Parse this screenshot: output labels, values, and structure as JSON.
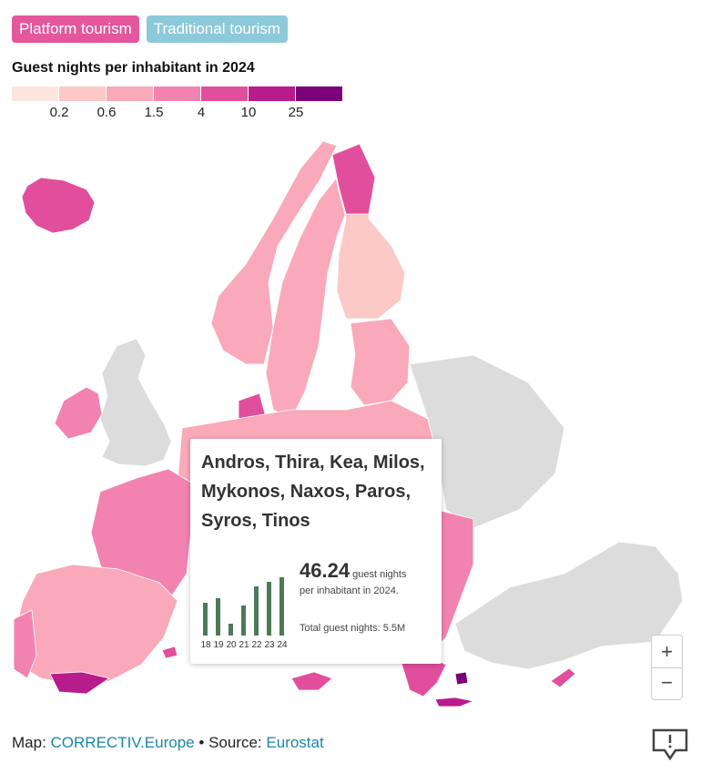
{
  "tabs": [
    {
      "label": "Platform tourism",
      "color": "#e4579b",
      "active": true
    },
    {
      "label": "Traditional tourism",
      "color": "#8cc9d9",
      "active": false
    }
  ],
  "legend": {
    "title": "Guest nights per inhabitant in 2024",
    "colors": [
      "#fde6df",
      "#fcc9c6",
      "#f9a9b9",
      "#f283b1",
      "#e14f9c",
      "#b81b8c",
      "#7a0177"
    ],
    "ticks": [
      "0.2",
      "0.6",
      "1.5",
      "4",
      "10",
      "25"
    ]
  },
  "tooltip": {
    "title": "Andros, Thira, Kea, Milos, Mykonos, Naxos, Paros, Syros, Tinos",
    "value": "46.24",
    "value_suffix": "guest nights",
    "value_desc": "per inhabitant in 2024.",
    "total": "Total guest nights: 5.5M",
    "years": [
      "18",
      "19",
      "20",
      "21",
      "22",
      "23",
      "24"
    ],
    "bar_values": [
      36,
      41,
      13,
      33,
      54,
      59,
      64
    ],
    "bar_color": "#4c7a5a"
  },
  "zoom": {
    "in": "+",
    "out": "−"
  },
  "footer": {
    "map_prefix": "Map:",
    "map_credit": "CORRECTIV.Europe",
    "separator": "•",
    "source_prefix": "Source:",
    "source": "Eurostat"
  },
  "map_colors": {
    "no_data": "#dcdcdc",
    "water": "#ffffff"
  }
}
